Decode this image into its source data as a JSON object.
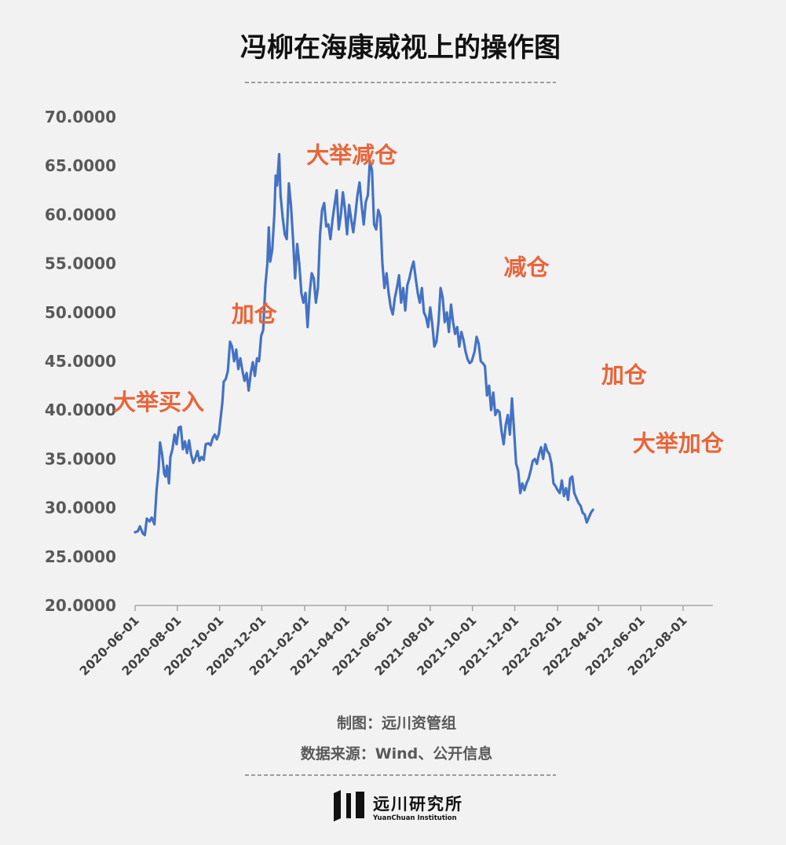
{
  "header": {
    "title": "冯柳在海康威视上的操作图"
  },
  "footer": {
    "credit": "制图：远川资管组",
    "source": "数据来源：Wind、公开信息",
    "brand_cn": "远川研究所",
    "brand_en": "YuanChuan Institution"
  },
  "colors": {
    "line": "#4472c4",
    "annotation": "#e8653a",
    "background": "#f2f2f2"
  },
  "chart_data": {
    "type": "line",
    "title": "冯柳在海康威视上的操作图",
    "xlabel": "",
    "ylabel": "",
    "ylim": [
      20,
      70
    ],
    "xlim": [
      "2020-06-01",
      "2022-09-12"
    ],
    "grid": false,
    "legend": "none",
    "ytick_labels": [
      "20.0000",
      "25.0000",
      "30.0000",
      "35.0000",
      "40.0000",
      "45.0000",
      "50.0000",
      "55.0000",
      "60.0000",
      "65.0000",
      "70.0000"
    ],
    "xtick_labels": [
      "2020-06-01",
      "2020-08-01",
      "2020-10-01",
      "2020-12-01",
      "2021-02-01",
      "2021-04-01",
      "2021-06-01",
      "2021-08-01",
      "2021-10-01",
      "2021-12-01",
      "2022-02-01",
      "2022-04-01",
      "2022-06-01",
      "2022-08-01"
    ],
    "annotations": [
      {
        "text": "大举买入",
        "x": "2020-07-05",
        "y": 40.0
      },
      {
        "text": "加仓",
        "x": "2020-11-20",
        "y": 49.0
      },
      {
        "text": "大举减仓",
        "x": "2021-04-10",
        "y": 65.3
      },
      {
        "text": "减仓",
        "x": "2021-12-18",
        "y": 53.8
      },
      {
        "text": "加仓",
        "x": "2022-05-08",
        "y": 42.8
      },
      {
        "text": "大举加仓",
        "x": "2022-07-25",
        "y": 35.8
      }
    ],
    "series": [
      {
        "values": [
          [
            "2020-06-01",
            27.5
          ],
          [
            "2020-06-05",
            27.6
          ],
          [
            "2020-06-08",
            28.1
          ],
          [
            "2020-06-12",
            27.4
          ],
          [
            "2020-06-15",
            27.2
          ],
          [
            "2020-06-18",
            28.9
          ],
          [
            "2020-06-22",
            28.6
          ],
          [
            "2020-06-25",
            29.0
          ],
          [
            "2020-06-29",
            28.3
          ],
          [
            "2020-07-02",
            31.8
          ],
          [
            "2020-07-05",
            34.0
          ],
          [
            "2020-07-07",
            36.7
          ],
          [
            "2020-07-10",
            35.5
          ],
          [
            "2020-07-13",
            33.5
          ],
          [
            "2020-07-15",
            33.2
          ],
          [
            "2020-07-17",
            34.3
          ],
          [
            "2020-07-20",
            32.5
          ],
          [
            "2020-07-22",
            35.2
          ],
          [
            "2020-07-25",
            36.0
          ],
          [
            "2020-07-28",
            37.5
          ],
          [
            "2020-07-31",
            36.5
          ],
          [
            "2020-08-03",
            38.2
          ],
          [
            "2020-08-06",
            38.3
          ],
          [
            "2020-08-09",
            36.0
          ],
          [
            "2020-08-12",
            36.8
          ],
          [
            "2020-08-15",
            35.6
          ],
          [
            "2020-08-18",
            36.9
          ],
          [
            "2020-08-21",
            35.4
          ],
          [
            "2020-08-24",
            34.6
          ],
          [
            "2020-08-27",
            35.1
          ],
          [
            "2020-08-30",
            35.8
          ],
          [
            "2020-09-02",
            34.8
          ],
          [
            "2020-09-05",
            35.2
          ],
          [
            "2020-09-08",
            34.9
          ],
          [
            "2020-09-11",
            36.5
          ],
          [
            "2020-09-15",
            36.6
          ],
          [
            "2020-09-18",
            36.4
          ],
          [
            "2020-09-21",
            37.1
          ],
          [
            "2020-09-24",
            37.5
          ],
          [
            "2020-09-27",
            37.0
          ],
          [
            "2020-09-30",
            37.6
          ],
          [
            "2020-10-05",
            40.8
          ],
          [
            "2020-10-07",
            42.9
          ],
          [
            "2020-10-10",
            43.2
          ],
          [
            "2020-10-13",
            44.0
          ],
          [
            "2020-10-16",
            47.0
          ],
          [
            "2020-10-19",
            46.5
          ],
          [
            "2020-10-22",
            45.0
          ],
          [
            "2020-10-25",
            46.2
          ],
          [
            "2020-10-28",
            44.2
          ],
          [
            "2020-10-31",
            45.3
          ],
          [
            "2020-11-03",
            44.0
          ],
          [
            "2020-11-06",
            43.0
          ],
          [
            "2020-11-09",
            43.8
          ],
          [
            "2020-11-12",
            42.0
          ],
          [
            "2020-11-15",
            43.8
          ],
          [
            "2020-11-18",
            44.9
          ],
          [
            "2020-11-21",
            43.5
          ],
          [
            "2020-11-24",
            45.3
          ],
          [
            "2020-11-27",
            45.0
          ],
          [
            "2020-11-30",
            47.6
          ],
          [
            "2020-12-03",
            48.2
          ],
          [
            "2020-12-06",
            52.7
          ],
          [
            "2020-12-09",
            55.0
          ],
          [
            "2020-12-11",
            58.7
          ],
          [
            "2020-12-13",
            55.2
          ],
          [
            "2020-12-16",
            56.4
          ],
          [
            "2020-12-19",
            60.0
          ],
          [
            "2020-12-21",
            64.0
          ],
          [
            "2020-12-23",
            63.0
          ],
          [
            "2020-12-26",
            66.2
          ],
          [
            "2020-12-28",
            62.0
          ],
          [
            "2020-12-31",
            59.8
          ],
          [
            "2021-01-03",
            58.0
          ],
          [
            "2021-01-06",
            57.5
          ],
          [
            "2021-01-09",
            63.2
          ],
          [
            "2021-01-12",
            61.0
          ],
          [
            "2021-01-15",
            57.5
          ],
          [
            "2021-01-18",
            53.5
          ],
          [
            "2021-01-21",
            57.0
          ],
          [
            "2021-01-24",
            55.0
          ],
          [
            "2021-01-27",
            52.0
          ],
          [
            "2021-01-30",
            51.0
          ],
          [
            "2021-02-02",
            52.0
          ],
          [
            "2021-02-05",
            48.5
          ],
          [
            "2021-02-08",
            52.0
          ],
          [
            "2021-02-11",
            54.0
          ],
          [
            "2021-02-14",
            53.5
          ],
          [
            "2021-02-17",
            51.0
          ],
          [
            "2021-02-20",
            52.5
          ],
          [
            "2021-02-23",
            58.0
          ],
          [
            "2021-02-26",
            60.5
          ],
          [
            "2021-03-01",
            61.2
          ],
          [
            "2021-03-04",
            58.8
          ],
          [
            "2021-03-07",
            59.0
          ],
          [
            "2021-03-10",
            57.5
          ],
          [
            "2021-03-13",
            59.5
          ],
          [
            "2021-03-16",
            61.0
          ],
          [
            "2021-03-19",
            62.5
          ],
          [
            "2021-03-22",
            58.5
          ],
          [
            "2021-03-25",
            60.0
          ],
          [
            "2021-03-28",
            62.3
          ],
          [
            "2021-03-31",
            60.5
          ],
          [
            "2021-04-03",
            58.0
          ],
          [
            "2021-04-06",
            61.0
          ],
          [
            "2021-04-09",
            59.5
          ],
          [
            "2021-04-12",
            58.2
          ],
          [
            "2021-04-15",
            60.0
          ],
          [
            "2021-04-18",
            62.0
          ],
          [
            "2021-04-21",
            63.3
          ],
          [
            "2021-04-24",
            61.0
          ],
          [
            "2021-04-27",
            59.0
          ],
          [
            "2021-04-30",
            61.3
          ],
          [
            "2021-05-03",
            62.0
          ],
          [
            "2021-05-06",
            65.5
          ],
          [
            "2021-05-09",
            64.5
          ],
          [
            "2021-05-12",
            59.0
          ],
          [
            "2021-05-15",
            58.5
          ],
          [
            "2021-05-18",
            60.5
          ],
          [
            "2021-05-21",
            59.8
          ],
          [
            "2021-05-24",
            55.0
          ],
          [
            "2021-05-27",
            52.5
          ],
          [
            "2021-05-30",
            54.0
          ],
          [
            "2021-06-02",
            52.0
          ],
          [
            "2021-06-05",
            50.5
          ],
          [
            "2021-06-08",
            49.8
          ],
          [
            "2021-06-11",
            51.5
          ],
          [
            "2021-06-14",
            52.5
          ],
          [
            "2021-06-17",
            53.8
          ],
          [
            "2021-06-20",
            51.0
          ],
          [
            "2021-06-23",
            52.5
          ],
          [
            "2021-06-26",
            50.2
          ],
          [
            "2021-06-29",
            52.8
          ],
          [
            "2021-07-02",
            53.5
          ],
          [
            "2021-07-05",
            54.5
          ],
          [
            "2021-07-08",
            55.2
          ],
          [
            "2021-07-11",
            53.5
          ],
          [
            "2021-07-14",
            52.0
          ],
          [
            "2021-07-17",
            51.0
          ],
          [
            "2021-07-20",
            52.5
          ],
          [
            "2021-07-23",
            50.0
          ],
          [
            "2021-07-26",
            49.5
          ],
          [
            "2021-07-29",
            48.5
          ],
          [
            "2021-08-01",
            50.5
          ],
          [
            "2021-08-04",
            48.8
          ],
          [
            "2021-08-07",
            46.5
          ],
          [
            "2021-08-10",
            47.0
          ],
          [
            "2021-08-13",
            49.0
          ],
          [
            "2021-08-16",
            52.5
          ],
          [
            "2021-08-19",
            51.5
          ],
          [
            "2021-08-22",
            49.0
          ],
          [
            "2021-08-25",
            50.0
          ],
          [
            "2021-08-28",
            48.0
          ],
          [
            "2021-08-31",
            50.8
          ],
          [
            "2021-09-03",
            49.0
          ],
          [
            "2021-09-06",
            47.8
          ],
          [
            "2021-09-09",
            48.5
          ],
          [
            "2021-09-12",
            46.5
          ],
          [
            "2021-09-15",
            48.0
          ],
          [
            "2021-09-18",
            47.2
          ],
          [
            "2021-09-21",
            46.0
          ],
          [
            "2021-09-24",
            45.2
          ],
          [
            "2021-09-27",
            44.8
          ],
          [
            "2021-09-30",
            45.0
          ],
          [
            "2021-10-04",
            46.0
          ],
          [
            "2021-10-07",
            47.5
          ],
          [
            "2021-10-10",
            46.8
          ],
          [
            "2021-10-13",
            45.0
          ],
          [
            "2021-10-16",
            44.8
          ],
          [
            "2021-10-19",
            44.5
          ],
          [
            "2021-10-22",
            41.5
          ],
          [
            "2021-10-25",
            42.5
          ],
          [
            "2021-10-28",
            40.0
          ],
          [
            "2021-10-31",
            41.8
          ],
          [
            "2021-11-03",
            39.5
          ],
          [
            "2021-11-06",
            40.0
          ],
          [
            "2021-11-09",
            39.8
          ],
          [
            "2021-11-12",
            37.8
          ],
          [
            "2021-11-15",
            36.5
          ],
          [
            "2021-11-18",
            38.5
          ],
          [
            "2021-11-21",
            39.5
          ],
          [
            "2021-11-24",
            37.5
          ],
          [
            "2021-11-27",
            41.2
          ],
          [
            "2021-11-30",
            38.0
          ],
          [
            "2021-12-03",
            34.5
          ],
          [
            "2021-12-06",
            33.8
          ],
          [
            "2021-12-09",
            31.5
          ],
          [
            "2021-12-12",
            32.5
          ],
          [
            "2021-12-15",
            31.8
          ],
          [
            "2021-12-18",
            32.5
          ],
          [
            "2021-12-21",
            33.0
          ],
          [
            "2021-12-24",
            33.8
          ],
          [
            "2021-12-27",
            34.8
          ],
          [
            "2021-12-30",
            35.0
          ],
          [
            "2022-01-02",
            34.5
          ],
          [
            "2022-01-05",
            35.5
          ],
          [
            "2022-01-08",
            36.2
          ],
          [
            "2022-01-11",
            35.0
          ],
          [
            "2022-01-14",
            36.5
          ],
          [
            "2022-01-17",
            35.8
          ],
          [
            "2022-01-20",
            35.5
          ],
          [
            "2022-01-23",
            34.5
          ],
          [
            "2022-01-26",
            32.5
          ],
          [
            "2022-01-29",
            32.2
          ],
          [
            "2022-02-01",
            31.8
          ],
          [
            "2022-02-04",
            31.5
          ],
          [
            "2022-02-07",
            32.8
          ],
          [
            "2022-02-10",
            31.2
          ],
          [
            "2022-02-13",
            32.0
          ],
          [
            "2022-02-16",
            30.8
          ],
          [
            "2022-02-19",
            33.0
          ],
          [
            "2022-02-22",
            33.2
          ],
          [
            "2022-02-25",
            31.5
          ],
          [
            "2022-02-28",
            31.0
          ],
          [
            "2022-03-03",
            30.5
          ],
          [
            "2022-03-06",
            30.2
          ],
          [
            "2022-03-09",
            29.5
          ],
          [
            "2022-03-12",
            29.3
          ],
          [
            "2022-03-15",
            28.5
          ],
          [
            "2022-03-18",
            29.0
          ],
          [
            "2022-03-21",
            29.5
          ],
          [
            "2022-03-24",
            29.8
          ]
        ]
      }
    ]
  }
}
